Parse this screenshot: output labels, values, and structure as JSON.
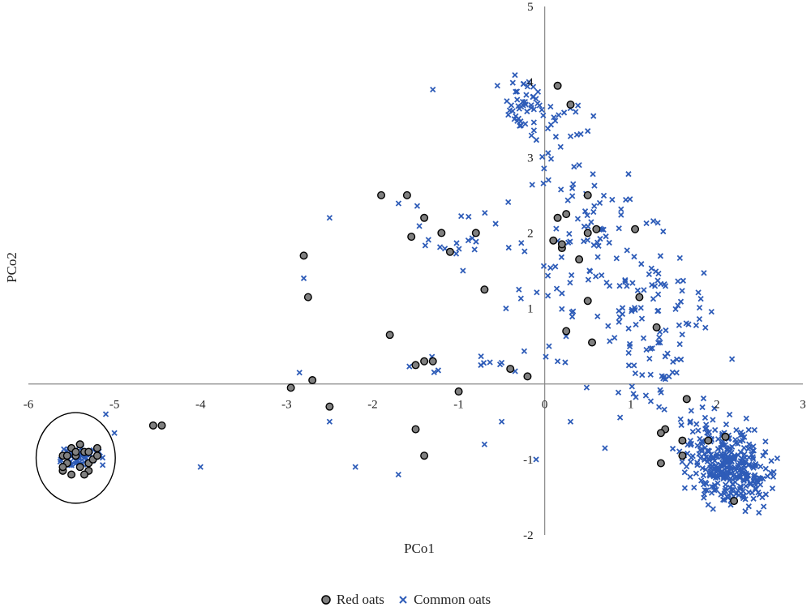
{
  "chart_data": {
    "type": "scatter",
    "title": "",
    "xlabel": "PCo1",
    "ylabel": "PCo2",
    "xlim": [
      -6,
      3
    ],
    "ylim": [
      -2,
      5
    ],
    "xticks": [
      -6,
      -5,
      -4,
      -3,
      -2,
      -1,
      0,
      1,
      2,
      3
    ],
    "yticks": [
      -2,
      -1,
      0,
      1,
      2,
      3,
      4,
      5
    ],
    "grid": false,
    "legend": "bottom-center",
    "annotations": [
      {
        "type": "ellipse",
        "center": [
          -5.45,
          -0.98
        ],
        "rx": 0.46,
        "ry": 0.6
      }
    ],
    "series": [
      {
        "name": "Red oats",
        "marker": "circle",
        "color": "#808080",
        "edge": "#000000",
        "x": [
          -1.1,
          0.15,
          -2.8,
          -2.75,
          -1.9,
          -1.6,
          -1.4,
          -1.55,
          -1.2,
          -1.3,
          -0.7,
          -1.8,
          -1.4,
          -1.5,
          -0.4,
          -0.8,
          -0.2,
          -2.95,
          -2.7,
          -2.5,
          -1.0,
          -1.5,
          -1.4,
          -4.55,
          -4.45,
          0.3,
          0.25,
          0.15,
          0.5,
          0.1,
          0.2,
          0.2,
          0.25,
          0.55,
          0.5,
          0.6,
          1.05,
          1.1,
          0.4,
          0.5,
          1.3,
          1.4,
          1.6,
          1.35,
          1.65,
          1.6,
          1.35,
          2.2,
          2.1,
          1.9,
          -5.6,
          -5.55,
          -5.5,
          -5.45,
          -5.4,
          -5.35,
          -5.3,
          -5.25,
          -5.2,
          -5.6,
          -5.5,
          -5.4,
          -5.3,
          -5.2,
          -5.45,
          -5.35,
          -5.55,
          -5.3,
          -5.6,
          -5.4
        ],
        "y": [
          1.75,
          3.95,
          1.7,
          1.15,
          2.5,
          2.5,
          2.2,
          1.95,
          2.0,
          0.3,
          1.25,
          0.65,
          0.3,
          0.25,
          0.2,
          2.0,
          0.1,
          -0.05,
          0.05,
          -0.3,
          -0.1,
          -0.6,
          -0.95,
          -0.55,
          -0.55,
          3.7,
          2.25,
          2.2,
          2.0,
          1.9,
          1.8,
          1.85,
          0.7,
          0.55,
          1.1,
          2.05,
          2.05,
          1.15,
          1.65,
          2.5,
          0.75,
          -0.6,
          -0.95,
          -0.65,
          -0.2,
          -0.75,
          -1.05,
          -1.55,
          -0.7,
          -0.75,
          -0.95,
          -1.05,
          -0.85,
          -0.95,
          -1.1,
          -0.9,
          -1.05,
          -1.0,
          -0.85,
          -1.15,
          -1.2,
          -0.8,
          -1.15,
          -0.95,
          -0.9,
          -1.2,
          -0.95,
          -0.9,
          -1.1,
          -0.8
        ]
      },
      {
        "name": "Common oats",
        "marker": "x",
        "color": "#2e5cb8",
        "points": "generated-cluster"
      }
    ]
  },
  "legend": {
    "items": [
      {
        "label": "Red oats"
      },
      {
        "label": "Common oats"
      }
    ]
  }
}
